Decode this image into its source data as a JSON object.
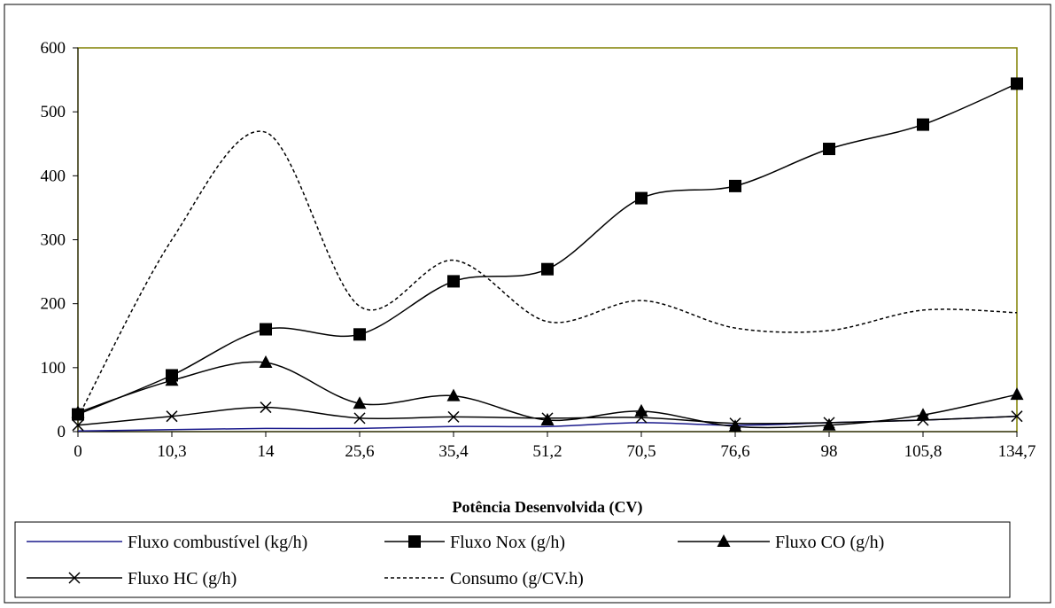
{
  "chart_data": {
    "type": "line",
    "title": "",
    "xlabel": "Potência Desenvolvida (CV)",
    "ylabel": "",
    "categories": [
      "0",
      "10,3",
      "14",
      "25,6",
      "35,4",
      "51,2",
      "70,5",
      "76,6",
      "98",
      "105,8",
      "134,7"
    ],
    "ylim": [
      0,
      600
    ],
    "yticks": [
      0,
      100,
      200,
      300,
      400,
      500,
      600
    ],
    "grid": false,
    "legend_position": "bottom",
    "series": [
      {
        "name": "Fluxo combustível (kg/h)",
        "values": [
          1,
          3,
          5,
          5,
          8,
          8,
          14,
          10,
          14,
          18,
          24
        ],
        "color": "#1a1a8c",
        "dash": "",
        "marker": "none"
      },
      {
        "name": "Fluxo Nox (g/h)",
        "values": [
          27,
          88,
          160,
          152,
          235,
          254,
          365,
          384,
          442,
          480,
          544
        ],
        "color": "#000000",
        "dash": "",
        "marker": "square"
      },
      {
        "name": "Fluxo CO (g/h)",
        "values": [
          30,
          80,
          108,
          44,
          56,
          18,
          32,
          8,
          10,
          26,
          58
        ],
        "color": "#000000",
        "dash": "",
        "marker": "triangle"
      },
      {
        "name": "Fluxo HC (g/h)",
        "values": [
          10,
          24,
          38,
          21,
          23,
          21,
          22,
          13,
          14,
          18,
          24
        ],
        "color": "#000000",
        "dash": "",
        "marker": "x"
      },
      {
        "name": "Consumo (g/CV.h)",
        "values": [
          22,
          300,
          468,
          196,
          268,
          172,
          205,
          162,
          158,
          190,
          186
        ],
        "color": "#000000",
        "dash": "4,3",
        "marker": "none"
      }
    ]
  }
}
